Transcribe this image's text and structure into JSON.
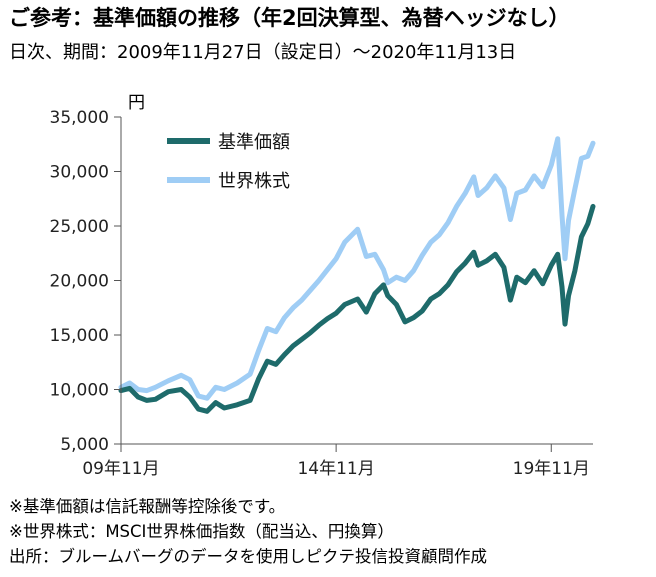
{
  "title": "ご参考：基準価額の推移（年2回決算型、為替ヘッジなし）",
  "subtitle": "日次、期間：2009年11月27日（設定日）～2020年11月13日",
  "notes": [
    "※基準価額は信託報酬等控除後です。",
    "※世界株式：MSCI世界株価指数（配当込、円換算）",
    "出所：ブルームバーグのデータを使用しピクテ投信投資顧問作成"
  ],
  "chart_data": {
    "type": "line",
    "ylabel": "円",
    "ylim": [
      5000,
      35000
    ],
    "yticks": [
      5000,
      10000,
      15000,
      20000,
      25000,
      30000,
      35000
    ],
    "ytick_labels": [
      "5,000",
      "10,000",
      "15,000",
      "20,000",
      "25,000",
      "30,000",
      "35,000"
    ],
    "xlim": [
      2009.9,
      2020.87
    ],
    "xticks": [
      2009.9,
      2014.9,
      2019.9
    ],
    "xtick_labels": [
      "09年11月",
      "14年11月",
      "19年11月"
    ],
    "grid": false,
    "legend_position": "top-left",
    "series": [
      {
        "name": "基準価額",
        "color": "#1e6b6b",
        "x": [
          2009.9,
          2010.1,
          2010.3,
          2010.5,
          2010.7,
          2011.0,
          2011.3,
          2011.5,
          2011.7,
          2011.9,
          2012.1,
          2012.3,
          2012.6,
          2012.9,
          2013.1,
          2013.3,
          2013.5,
          2013.7,
          2013.9,
          2014.1,
          2014.3,
          2014.5,
          2014.7,
          2014.9,
          2015.1,
          2015.4,
          2015.6,
          2015.8,
          2016.0,
          2016.1,
          2016.3,
          2016.5,
          2016.7,
          2016.9,
          2017.1,
          2017.3,
          2017.5,
          2017.7,
          2017.9,
          2018.1,
          2018.2,
          2018.4,
          2018.6,
          2018.8,
          2018.95,
          2019.1,
          2019.3,
          2019.5,
          2019.7,
          2019.9,
          2020.05,
          2020.15,
          2020.22,
          2020.3,
          2020.45,
          2020.6,
          2020.75,
          2020.87
        ],
        "values": [
          9900,
          10100,
          9300,
          9000,
          9100,
          9800,
          10000,
          9300,
          8200,
          8000,
          8800,
          8300,
          8600,
          9000,
          11000,
          12600,
          12300,
          13200,
          14000,
          14600,
          15200,
          15900,
          16500,
          17000,
          17800,
          18300,
          17100,
          18800,
          19600,
          18600,
          17800,
          16200,
          16600,
          17200,
          18300,
          18800,
          19600,
          20800,
          21600,
          22600,
          21400,
          21800,
          22400,
          21200,
          18200,
          20300,
          19800,
          20900,
          19700,
          21400,
          22400,
          19400,
          16000,
          18600,
          20900,
          24000,
          25200,
          26800
        ]
      },
      {
        "name": "世界株式",
        "color": "#9fcdf5",
        "x": [
          2009.9,
          2010.1,
          2010.3,
          2010.5,
          2010.7,
          2011.0,
          2011.3,
          2011.5,
          2011.7,
          2011.9,
          2012.1,
          2012.3,
          2012.6,
          2012.9,
          2013.1,
          2013.3,
          2013.5,
          2013.7,
          2013.9,
          2014.1,
          2014.3,
          2014.5,
          2014.7,
          2014.9,
          2015.1,
          2015.4,
          2015.6,
          2015.8,
          2016.0,
          2016.1,
          2016.3,
          2016.5,
          2016.7,
          2016.9,
          2017.1,
          2017.3,
          2017.5,
          2017.7,
          2017.9,
          2018.1,
          2018.2,
          2018.4,
          2018.6,
          2018.8,
          2018.95,
          2019.1,
          2019.3,
          2019.5,
          2019.7,
          2019.9,
          2020.05,
          2020.15,
          2020.22,
          2020.3,
          2020.45,
          2020.6,
          2020.75,
          2020.87
        ],
        "values": [
          10200,
          10600,
          10000,
          9900,
          10200,
          10800,
          11300,
          10900,
          9400,
          9200,
          10200,
          10000,
          10600,
          11400,
          13600,
          15600,
          15300,
          16600,
          17500,
          18200,
          19100,
          20000,
          21000,
          22000,
          23500,
          24700,
          22200,
          22400,
          21000,
          19800,
          20300,
          20000,
          20900,
          22300,
          23500,
          24200,
          25300,
          26800,
          28000,
          29500,
          27800,
          28500,
          29600,
          28500,
          25600,
          28000,
          28300,
          29600,
          28600,
          30600,
          33000,
          26000,
          22000,
          25500,
          28400,
          31200,
          31400,
          32600
        ]
      }
    ]
  }
}
